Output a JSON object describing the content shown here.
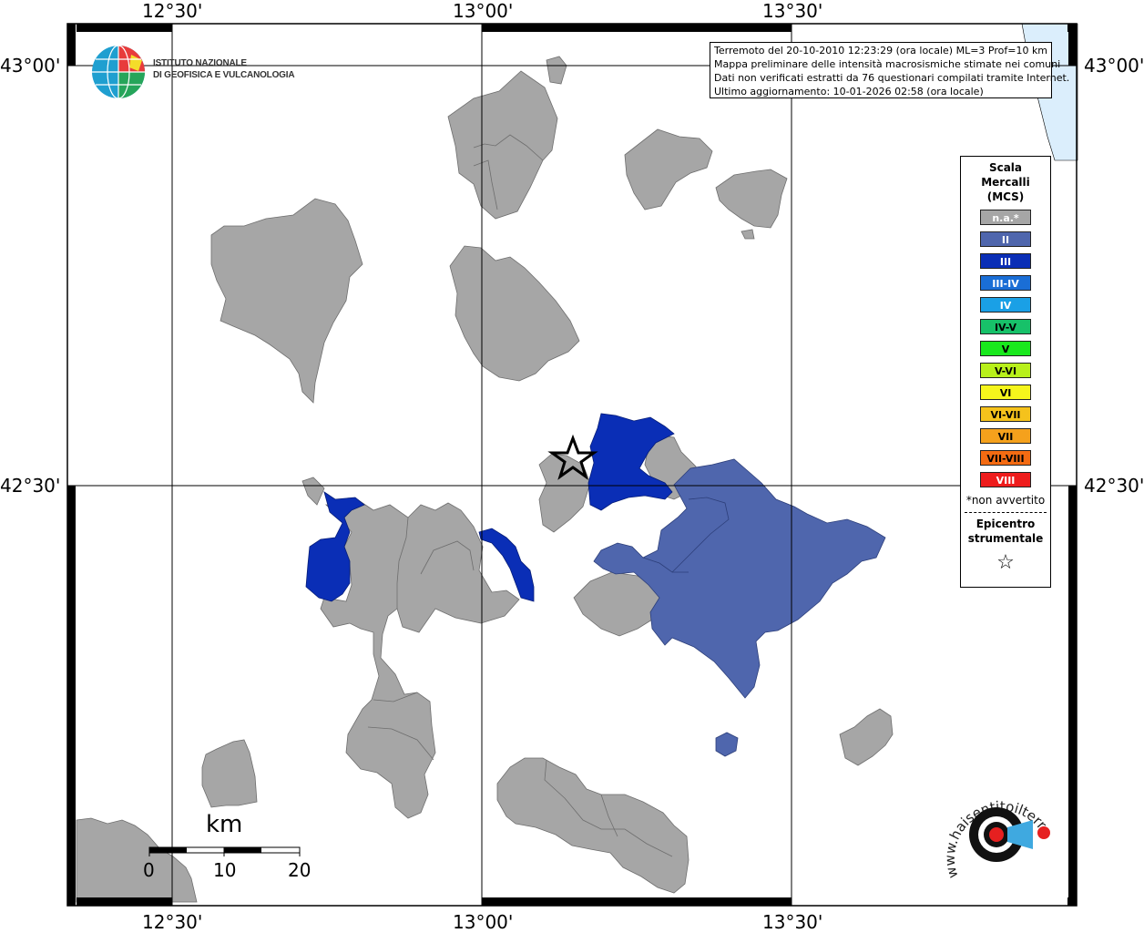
{
  "map": {
    "lon_labels": [
      "12°30'",
      "13°00'",
      "13°30'"
    ],
    "lat_labels": [
      "43°00'",
      "42°30'"
    ],
    "info": {
      "line1": "Terremoto del 20-10-2010 12:23:29 (ora locale) ML=3 Prof=10 km",
      "line2": "Mappa preliminare delle intensità macrosismiche stimate nei comuni",
      "line3": "Dati non verificati estratti da 76 questionari compilati tramite Internet.",
      "line4": "Ultimo aggiornamento: 10-01-2026 02:58 (ora locale)"
    },
    "scale_bar": {
      "unit": "km",
      "ticks": [
        "0",
        "10",
        "20"
      ]
    }
  },
  "logo": {
    "ingv_line1": "ISTITUTO NAZIONALE",
    "ingv_line2": "DI GEOFISICA E VULCANOLOGIA",
    "hsit_text": "www.haisentitoilterremoto.it"
  },
  "legend": {
    "title_line1": "Scala",
    "title_line2": "Mercalli",
    "title_line3": "(MCS)",
    "classes": [
      {
        "label": "n.a.*",
        "color": "#a6a6a6"
      },
      {
        "label": "II",
        "color": "#4f66ad"
      },
      {
        "label": "III",
        "color": "#0a2eb6"
      },
      {
        "label": "III-IV",
        "color": "#1a6ed6"
      },
      {
        "label": "IV",
        "color": "#1aa0e6"
      },
      {
        "label": "IV-V",
        "color": "#17c169"
      },
      {
        "label": "V",
        "color": "#19e81d"
      },
      {
        "label": "V-VI",
        "color": "#b8f01b"
      },
      {
        "label": "VI",
        "color": "#f5f51c"
      },
      {
        "label": "VI-VII",
        "color": "#f5c21c"
      },
      {
        "label": "VII",
        "color": "#f5a11c"
      },
      {
        "label": "VII-VIII",
        "color": "#f46b12"
      },
      {
        "label": "VIII",
        "color": "#ee1c1c"
      }
    ],
    "note": "*non avvertito",
    "epicenter_line1": "Epicentro",
    "epicenter_line2": "strumentale"
  }
}
